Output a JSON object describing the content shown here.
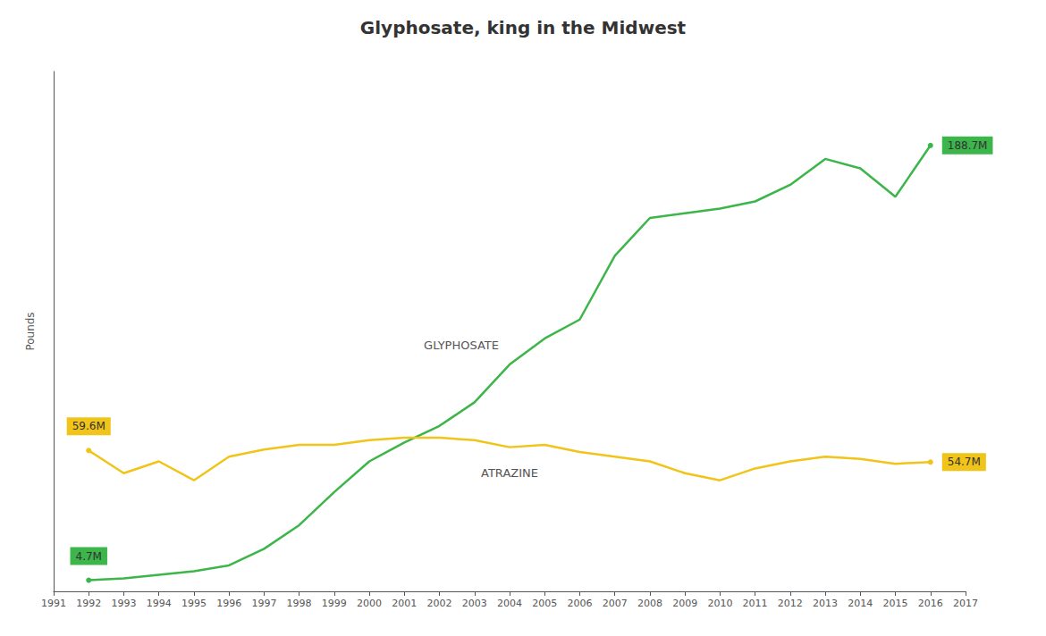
{
  "chart_data": {
    "type": "line",
    "title": "Glyphosate, king in the Midwest",
    "ylabel": "Pounds",
    "x": [
      1992,
      1993,
      1994,
      1995,
      1996,
      1997,
      1998,
      1999,
      2000,
      2001,
      2002,
      2003,
      2004,
      2005,
      2006,
      2007,
      2008,
      2009,
      2010,
      2011,
      2012,
      2013,
      2014,
      2015,
      2016
    ],
    "series": [
      {
        "name": "GLYPHOSATE",
        "color": "#3cb54a",
        "values": [
          4.7,
          5.5,
          7.0,
          8.5,
          11.0,
          18.0,
          28.0,
          42.0,
          55.0,
          63.0,
          70.0,
          80.0,
          96.0,
          107.0,
          115.0,
          142.0,
          158.0,
          160.0,
          162.0,
          165.0,
          172.0,
          183.0,
          179.0,
          167.0,
          188.7
        ]
      },
      {
        "name": "ATRAZINE",
        "color": "#f0c419",
        "values": [
          59.6,
          50.0,
          55.0,
          47.0,
          57.0,
          60.0,
          62.0,
          62.0,
          64.0,
          65.0,
          65.0,
          64.0,
          61.0,
          62.0,
          59.0,
          57.0,
          55.0,
          50.0,
          47.0,
          52.0,
          55.0,
          57.0,
          56.0,
          54.0,
          54.7
        ]
      }
    ],
    "annotations": [
      {
        "series": "GLYPHOSATE",
        "x": 1992,
        "y": 4.7,
        "text": "4.7M"
      },
      {
        "series": "GLYPHOSATE",
        "x": 2016,
        "y": 188.7,
        "text": "188.7M"
      },
      {
        "series": "ATRAZINE",
        "x": 1992,
        "y": 59.6,
        "text": "59.6M"
      },
      {
        "series": "ATRAZINE",
        "x": 2016,
        "y": 54.7,
        "text": "54.7M"
      }
    ],
    "xlim": [
      1991,
      2017
    ],
    "xticks": [
      1991,
      1992,
      1993,
      1994,
      1995,
      1996,
      1997,
      1998,
      1999,
      2000,
      2001,
      2002,
      2003,
      2004,
      2005,
      2006,
      2007,
      2008,
      2009,
      2010,
      2011,
      2012,
      2013,
      2014,
      2015,
      2016,
      2017
    ],
    "ylim": [
      0,
      220
    ],
    "tick_labels": "x",
    "grid": false
  }
}
